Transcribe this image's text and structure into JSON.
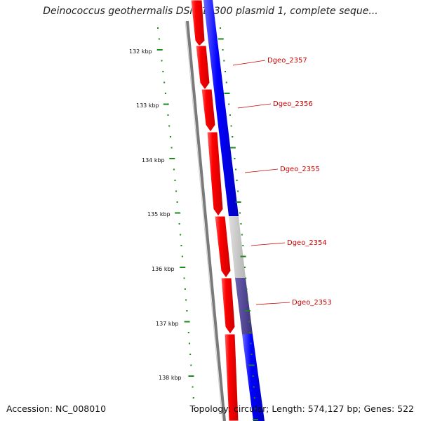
{
  "header": {
    "title": "Deinococcus geothermalis DSM 11300 plasmid 1, complete seque..."
  },
  "footer": {
    "accession_label": "Accession:",
    "accession_value": "NC_008010",
    "summary": "Topology: circular; Length: 574,127 bp; Genes: 522"
  },
  "ruler": {
    "labels": [
      "132 kbp",
      "133 kbp",
      "134 kbp",
      "135 kbp",
      "136 kbp",
      "137 kbp",
      "138 kbp"
    ]
  },
  "genes": [
    {
      "name": "Dgeo_2357"
    },
    {
      "name": "Dgeo_2356"
    },
    {
      "name": "Dgeo_2355"
    },
    {
      "name": "Dgeo_2354"
    },
    {
      "name": "Dgeo_2353"
    }
  ],
  "colors": {
    "forward_cds": "#ff0000",
    "reverse_cds": "#0000ff",
    "backbone": "#808080",
    "tick": "#1a8a1a",
    "label": "#cc0000",
    "highlight_grey": "#c8c8c8",
    "highlight_navy": "#4a3f8f"
  }
}
